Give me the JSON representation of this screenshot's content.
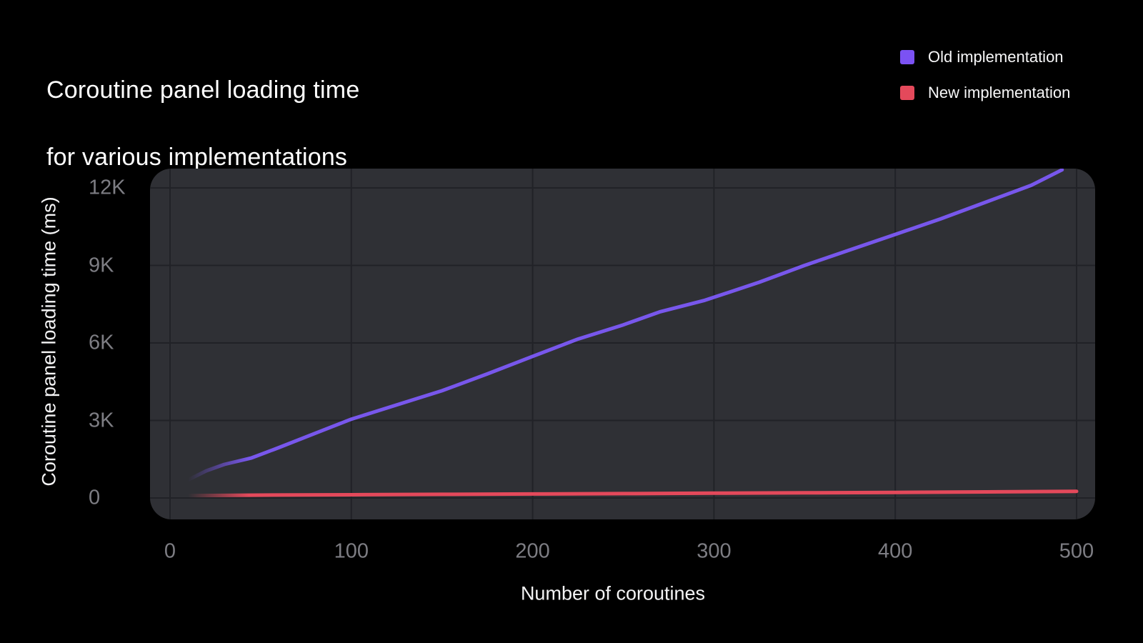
{
  "title": {
    "line1": "Coroutine panel loading time",
    "line2": "for various implementations"
  },
  "legend": {
    "items": [
      {
        "label": "Old implementation",
        "color": "#7b52f3"
      },
      {
        "label": "New implementation",
        "color": "#e4495b"
      }
    ]
  },
  "colors": {
    "background": "#000000",
    "panel": "#2f3035",
    "gridline": "#212227",
    "tick_label": "#7d7d83",
    "old_line": "#7857ec",
    "new_line": "#e4495b"
  },
  "chart_data": {
    "type": "line",
    "title": "Coroutine panel loading time for various implementations",
    "xlabel": "Number of coroutines",
    "ylabel": "Coroutine panel loading time (ms)",
    "xlim": [
      0,
      500
    ],
    "ylim": [
      0,
      12000
    ],
    "grid": true,
    "legend_position": "top-right",
    "x_ticks": [
      {
        "value": 0,
        "label": "0"
      },
      {
        "value": 100,
        "label": "100"
      },
      {
        "value": 200,
        "label": "200"
      },
      {
        "value": 300,
        "label": "300"
      },
      {
        "value": 400,
        "label": "400"
      },
      {
        "value": 500,
        "label": "500"
      }
    ],
    "y_ticks": [
      {
        "value": 12000,
        "label": "12K"
      },
      {
        "value": 9000,
        "label": "9K"
      },
      {
        "value": 6000,
        "label": "6K"
      },
      {
        "value": 3000,
        "label": "3K"
      },
      {
        "value": 0,
        "label": "0"
      }
    ],
    "series": [
      {
        "name": "Old implementation",
        "color": "#7857ec",
        "fade_in_start": true,
        "x": [
          10,
          20,
          30,
          45,
          60,
          80,
          100,
          125,
          150,
          175,
          200,
          225,
          250,
          270,
          295,
          325,
          350,
          375,
          400,
          425,
          450,
          475,
          492
        ],
        "y": [
          700,
          1050,
          1300,
          1550,
          1950,
          2500,
          3050,
          3600,
          4150,
          4800,
          5480,
          6150,
          6700,
          7200,
          7650,
          8350,
          9000,
          9600,
          10200,
          10800,
          11450,
          12100,
          12700
        ]
      },
      {
        "name": "New implementation",
        "color": "#e4495b",
        "fade_in_start": true,
        "x": [
          10,
          50,
          100,
          150,
          200,
          250,
          300,
          350,
          400,
          450,
          500
        ],
        "y": [
          90,
          110,
          125,
          140,
          155,
          170,
          185,
          200,
          215,
          235,
          255
        ]
      }
    ]
  }
}
